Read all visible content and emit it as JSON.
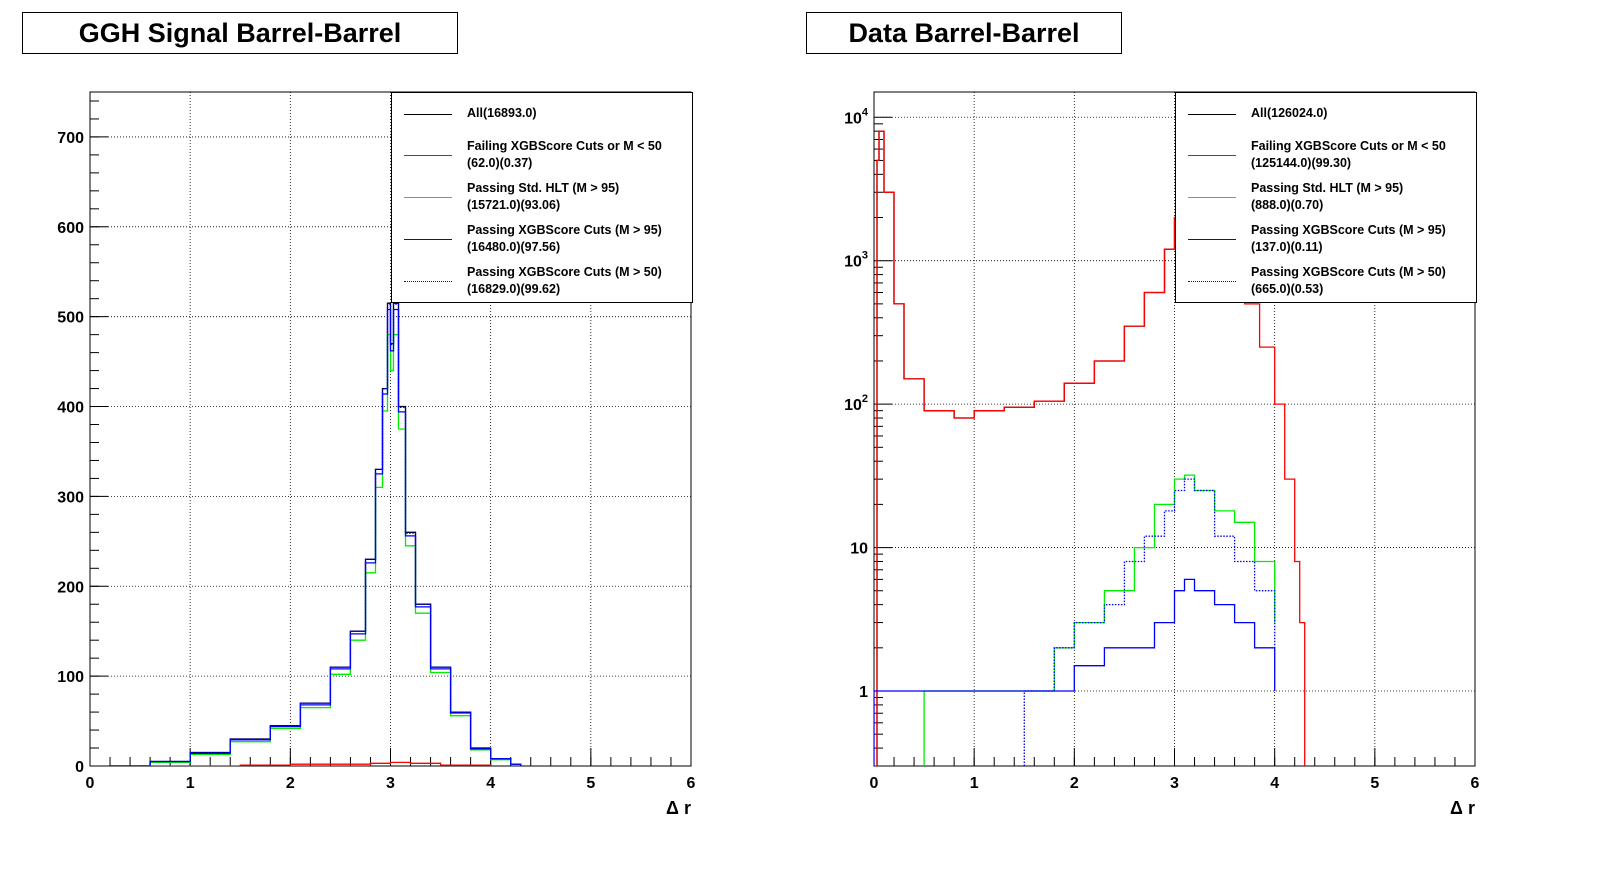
{
  "chart_data": [
    {
      "type": "line",
      "title": "GGH Signal Barrel-Barrel",
      "xlabel": "Δ r",
      "ylabel": "",
      "xlim": [
        0,
        6
      ],
      "ylim": [
        0,
        750
      ],
      "yscale": "linear",
      "x_ticks": [
        "0",
        "1",
        "2",
        "3",
        "4",
        "5",
        "6"
      ],
      "y_ticks": [
        "0",
        "100",
        "200",
        "300",
        "400",
        "500",
        "600",
        "700"
      ],
      "grid": true,
      "legend_position": "top-right",
      "series": [
        {
          "name": "All(16893.0)",
          "label_lines": [
            "All(16893.0)"
          ],
          "color": "#000000",
          "style": "solid",
          "x": [
            0.2,
            0.6,
            1.0,
            1.4,
            1.8,
            2.1,
            2.4,
            2.6,
            2.75,
            2.85,
            2.92,
            2.97,
            3.0,
            3.03,
            3.08,
            3.15,
            3.25,
            3.4,
            3.6,
            3.8,
            4.0,
            4.2,
            4.3
          ],
          "y": [
            0,
            5,
            15,
            30,
            45,
            70,
            110,
            150,
            230,
            330,
            420,
            515,
            470,
            515,
            400,
            260,
            180,
            110,
            60,
            20,
            8,
            2,
            0
          ]
        },
        {
          "name": "Failing XGBScore Cuts or M < 50",
          "label_lines": [
            "Failing XGBScore Cuts or M < 50",
            "(62.0)(0.37)"
          ],
          "color": "#ff0000",
          "style": "solid",
          "x": [
            0.5,
            1.0,
            1.5,
            2.0,
            2.5,
            2.8,
            3.0,
            3.2,
            3.5,
            4.0
          ],
          "y": [
            0,
            0,
            1,
            2,
            2,
            3,
            4,
            3,
            1,
            0
          ]
        },
        {
          "name": "Passing Std. HLT (M > 95)",
          "label_lines": [
            "Passing Std. HLT (M > 95)",
            "(15721.0)(93.06)"
          ],
          "color": "#00ee00",
          "style": "solid",
          "x": [
            0.2,
            0.6,
            1.0,
            1.4,
            1.8,
            2.1,
            2.4,
            2.6,
            2.75,
            2.85,
            2.92,
            2.97,
            3.0,
            3.03,
            3.08,
            3.15,
            3.25,
            3.4,
            3.6,
            3.8,
            4.0,
            4.2,
            4.3
          ],
          "y": [
            0,
            4,
            13,
            27,
            42,
            65,
            102,
            140,
            215,
            310,
            395,
            480,
            440,
            480,
            375,
            245,
            170,
            104,
            56,
            18,
            7,
            2,
            0
          ]
        },
        {
          "name": "Passing XGBScore Cuts (M > 95)",
          "label_lines": [
            "Passing XGBScore Cuts (M > 95)",
            "(16480.0)(97.56)"
          ],
          "color": "#0000ff",
          "style": "solid",
          "x": [
            0.2,
            0.6,
            1.0,
            1.4,
            1.8,
            2.1,
            2.4,
            2.6,
            2.75,
            2.85,
            2.92,
            2.97,
            3.0,
            3.03,
            3.08,
            3.15,
            3.25,
            3.4,
            3.6,
            3.8,
            4.0,
            4.2,
            4.3
          ],
          "y": [
            0,
            5,
            14,
            29,
            44,
            68,
            108,
            147,
            226,
            325,
            414,
            508,
            462,
            508,
            394,
            256,
            177,
            108,
            59,
            19,
            8,
            2,
            0
          ]
        },
        {
          "name": "Passing XGBScore Cuts (M > 50)",
          "label_lines": [
            "Passing XGBScore Cuts (M > 50)",
            "(16829.0)(99.62)"
          ],
          "color": "#0000ff",
          "style": "dotted",
          "x": [
            0.2,
            0.6,
            1.0,
            1.4,
            1.8,
            2.1,
            2.4,
            2.6,
            2.75,
            2.85,
            2.92,
            2.97,
            3.0,
            3.03,
            3.08,
            3.15,
            3.25,
            3.4,
            3.6,
            3.8,
            4.0,
            4.2,
            4.3
          ],
          "y": [
            0,
            5,
            15,
            30,
            45,
            70,
            110,
            150,
            230,
            330,
            420,
            514,
            469,
            514,
            399,
            259,
            180,
            110,
            60,
            20,
            8,
            2,
            0
          ]
        }
      ]
    },
    {
      "type": "line",
      "title": "Data Barrel-Barrel",
      "xlabel": "Δ r",
      "ylabel": "",
      "xlim": [
        0,
        6
      ],
      "ylim": [
        0.3,
        15000
      ],
      "yscale": "log",
      "x_ticks": [
        "0",
        "1",
        "2",
        "3",
        "4",
        "5",
        "6"
      ],
      "y_tick_values": [
        1,
        10,
        100,
        1000,
        10000
      ],
      "y_ticks": [
        "1",
        "10",
        "10^2",
        "10^3",
        "10^4"
      ],
      "grid": true,
      "legend_position": "top-right",
      "series": [
        {
          "name": "All(126024.0)",
          "label_lines": [
            "All(126024.0)"
          ],
          "color": "#000000",
          "style": "solid",
          "x": [
            0.03,
            0.05,
            0.1,
            0.2,
            0.3,
            0.5,
            0.8,
            1.0,
            1.3,
            1.6,
            1.9,
            2.2,
            2.5,
            2.7,
            2.9,
            3.0,
            3.1
          ],
          "y": [
            5000,
            8000,
            3000,
            500,
            150,
            90,
            80,
            90,
            95,
            105,
            140,
            200,
            350,
            600,
            1200,
            2000,
            3000
          ]
        },
        {
          "name": "Failing XGBScore Cuts or M < 50",
          "label_lines": [
            "Failing XGBScore Cuts or M < 50",
            "(125144.0)(99.30)"
          ],
          "color": "#ff0000",
          "style": "solid",
          "x": [
            0.0,
            0.03,
            0.05,
            0.1,
            0.2,
            0.3,
            0.5,
            0.8,
            1.0,
            1.3,
            1.6,
            1.9,
            2.2,
            2.5,
            2.7,
            2.9,
            3.0,
            3.1,
            3.2,
            3.5,
            3.7,
            3.85,
            4.0,
            4.1,
            4.2,
            4.25,
            4.3
          ],
          "y": [
            0.3,
            5000,
            8000,
            3000,
            500,
            150,
            90,
            80,
            90,
            95,
            105,
            140,
            200,
            350,
            600,
            1200,
            2000,
            3000,
            3500,
            1000,
            500,
            250,
            100,
            30,
            8,
            3,
            0.3
          ]
        },
        {
          "name": "Passing Std. HLT (M > 95)",
          "label_lines": [
            "Passing Std. HLT (M > 95)",
            "(888.0)(0.70)"
          ],
          "color": "#00ee00",
          "style": "solid",
          "x": [
            0.5,
            1.1,
            1.5,
            1.8,
            2.0,
            2.3,
            2.6,
            2.8,
            3.0,
            3.1,
            3.2,
            3.4,
            3.6,
            3.8,
            4.0
          ],
          "y": [
            1,
            1,
            1,
            2,
            3,
            5,
            10,
            20,
            30,
            32,
            25,
            18,
            15,
            8,
            3
          ]
        },
        {
          "name": "Passing XGBScore Cuts (M > 95)",
          "label_lines": [
            "Passing XGBScore Cuts (M > 95)",
            "(137.0)(0.11)"
          ],
          "color": "#0000ff",
          "style": "solid",
          "x": [
            0.0,
            1.3,
            1.7,
            2.0,
            2.3,
            2.6,
            2.8,
            3.0,
            3.1,
            3.2,
            3.4,
            3.6,
            3.8,
            4.0
          ],
          "y": [
            1,
            1,
            1,
            1.5,
            2,
            2,
            3,
            5,
            6,
            5,
            4,
            3,
            2,
            1
          ]
        },
        {
          "name": "Passing XGBScore Cuts (M > 50)",
          "label_lines": [
            "Passing XGBScore Cuts (M > 50)",
            "(665.0)(0.53)"
          ],
          "color": "#0000ff",
          "style": "dotted",
          "x": [
            1.5,
            1.8,
            2.0,
            2.3,
            2.5,
            2.7,
            2.9,
            3.0,
            3.1,
            3.2,
            3.4,
            3.6,
            3.8,
            4.0
          ],
          "y": [
            1,
            2,
            3,
            4,
            8,
            12,
            18,
            25,
            30,
            25,
            12,
            8,
            5,
            2
          ]
        }
      ]
    }
  ]
}
